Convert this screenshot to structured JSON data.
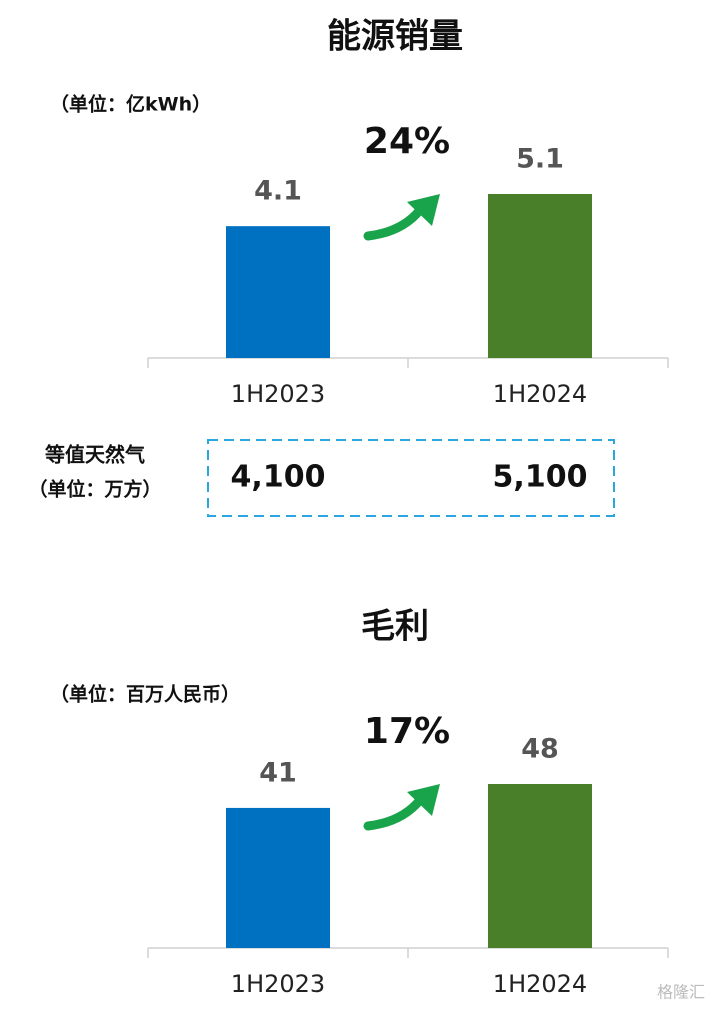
{
  "chart_data": [
    {
      "type": "bar",
      "title": "能源销量",
      "unit": "（单位：亿kWh）",
      "categories": [
        "1H2023",
        "1H2024"
      ],
      "values": [
        4.1,
        5.1
      ],
      "colors": [
        "#0070c0",
        "#4a7f2a"
      ],
      "annotation": "24%",
      "equivalent": {
        "label": "等值天然气",
        "unit": "（单位：万方）",
        "values": [
          4100,
          5100
        ],
        "value_labels": [
          "4,100",
          "5,100"
        ]
      }
    },
    {
      "type": "bar",
      "title": "毛利",
      "unit": "（单位：百万人民币）",
      "categories": [
        "1H2023",
        "1H2024"
      ],
      "values": [
        41,
        48
      ],
      "colors": [
        "#0070c0",
        "#4a7f2a"
      ],
      "annotation": "17%"
    }
  ],
  "watermark": "格隆汇"
}
